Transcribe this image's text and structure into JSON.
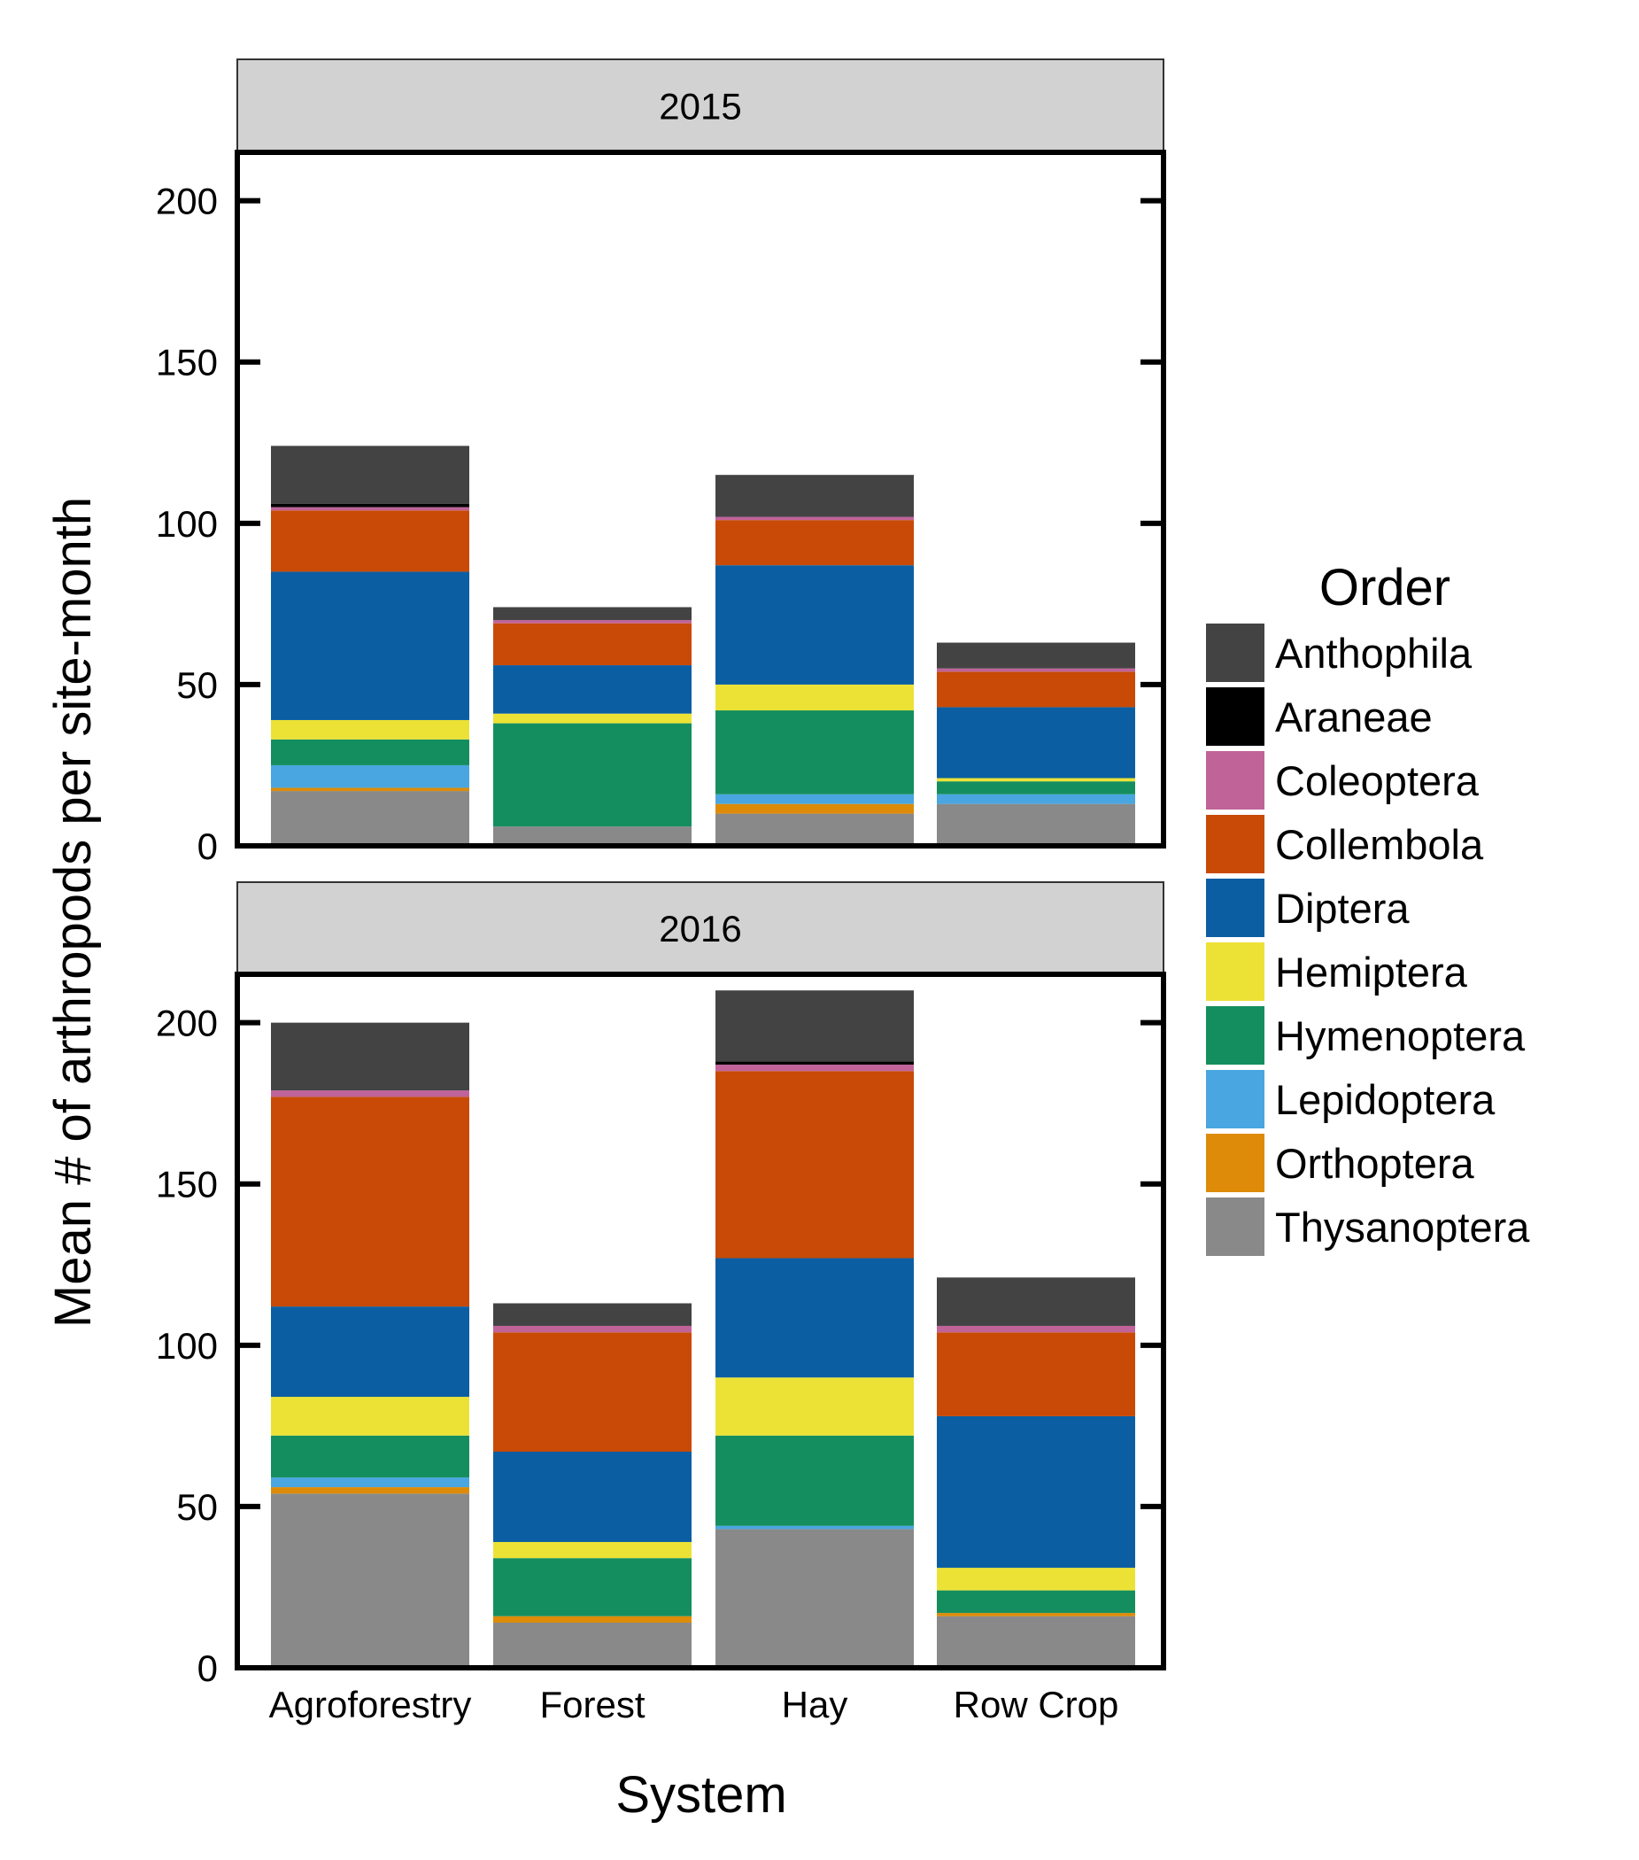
{
  "chart_data": {
    "type": "bar",
    "stacked": true,
    "xlabel": "System",
    "ylabel": "Mean # of arthropods per site-month",
    "categories": [
      "Agroforestry",
      "Forest",
      "Hay",
      "Row Crop"
    ],
    "ylim": [
      0,
      215
    ],
    "yticks": [
      0,
      50,
      100,
      150,
      200
    ],
    "legend": {
      "title": "Order",
      "position": "right",
      "items": [
        "Anthophila",
        "Araneae",
        "Coleoptera",
        "Collembola",
        "Diptera",
        "Hemiptera",
        "Hymenoptera",
        "Lepidoptera",
        "Orthoptera",
        "Thysanoptera"
      ]
    },
    "colors": {
      "Anthophila": "#434343",
      "Araneae": "#000000",
      "Coleoptera": "#c06399",
      "Collembola": "#c84a06",
      "Diptera": "#0c5ea2",
      "Hemiptera": "#ece236",
      "Hymenoptera": "#158e5f",
      "Lepidoptera": "#49a6e0",
      "Orthoptera": "#dd8b09",
      "Thysanoptera": "#898989"
    },
    "stack_order": [
      "Thysanoptera",
      "Orthoptera",
      "Lepidoptera",
      "Hymenoptera",
      "Hemiptera",
      "Diptera",
      "Collembola",
      "Coleoptera",
      "Araneae",
      "Anthophila"
    ],
    "panels": [
      {
        "title": "2015",
        "series": [
          {
            "name": "Thysanoptera",
            "values": [
              17,
              6,
              10,
              13
            ]
          },
          {
            "name": "Orthoptera",
            "values": [
              1,
              0,
              3,
              0
            ]
          },
          {
            "name": "Lepidoptera",
            "values": [
              7,
              0,
              3,
              3
            ]
          },
          {
            "name": "Hymenoptera",
            "values": [
              8,
              32,
              26,
              4
            ]
          },
          {
            "name": "Hemiptera",
            "values": [
              6,
              3,
              8,
              1
            ]
          },
          {
            "name": "Diptera",
            "values": [
              46,
              15,
              37,
              22
            ]
          },
          {
            "name": "Collembola",
            "values": [
              19,
              13,
              14,
              11
            ]
          },
          {
            "name": "Coleoptera",
            "values": [
              1,
              1,
              1,
              1
            ]
          },
          {
            "name": "Araneae",
            "values": [
              1,
              0,
              0,
              0
            ]
          },
          {
            "name": "Anthophila",
            "values": [
              18,
              4,
              13,
              8
            ]
          }
        ]
      },
      {
        "title": "2016",
        "series": [
          {
            "name": "Thysanoptera",
            "values": [
              54,
              14,
              43,
              16
            ]
          },
          {
            "name": "Orthoptera",
            "values": [
              2,
              2,
              0,
              1
            ]
          },
          {
            "name": "Lepidoptera",
            "values": [
              3,
              0,
              1,
              0
            ]
          },
          {
            "name": "Hymenoptera",
            "values": [
              13,
              18,
              28,
              7
            ]
          },
          {
            "name": "Hemiptera",
            "values": [
              12,
              5,
              18,
              7
            ]
          },
          {
            "name": "Diptera",
            "values": [
              28,
              28,
              37,
              47
            ]
          },
          {
            "name": "Collembola",
            "values": [
              65,
              37,
              58,
              26
            ]
          },
          {
            "name": "Coleoptera",
            "values": [
              2,
              2,
              2,
              2
            ]
          },
          {
            "name": "Araneae",
            "values": [
              0,
              0,
              1,
              0
            ]
          },
          {
            "name": "Anthophila",
            "values": [
              21,
              7,
              22,
              15
            ]
          }
        ]
      }
    ]
  }
}
